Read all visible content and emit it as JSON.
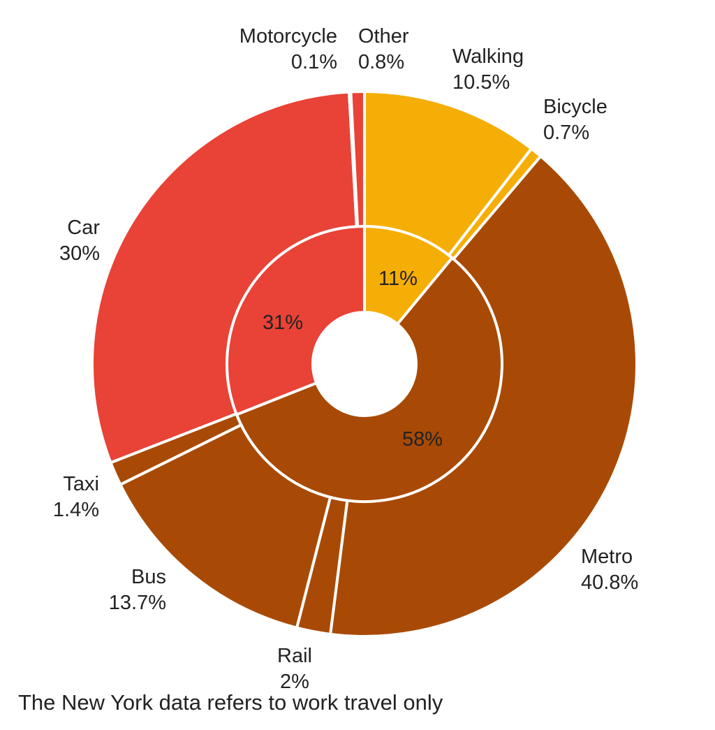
{
  "chart_data": {
    "type": "pie",
    "subtype": "nested-donut",
    "colors": {
      "walking_bicycle": "#f5ae05",
      "public_transport": "#a84a05",
      "car": "#e94236",
      "motorcycle": "#1c6e8c",
      "other": "#e94236",
      "separator": "#ffffff"
    },
    "outer": [
      {
        "label": "Walking",
        "value_label": "10.5%",
        "value": 10.5,
        "color": "#f5ae05"
      },
      {
        "label": "Bicycle",
        "value_label": "0.7%",
        "value": 0.7,
        "color": "#f5ae05"
      },
      {
        "label": "Metro",
        "value_label": "40.8%",
        "value": 40.8,
        "color": "#a84a05"
      },
      {
        "label": "Rail",
        "value_label": "2%",
        "value": 2.0,
        "color": "#a84a05"
      },
      {
        "label": "Bus",
        "value_label": "13.7%",
        "value": 13.7,
        "color": "#a84a05"
      },
      {
        "label": "Taxi",
        "value_label": "1.4%",
        "value": 1.4,
        "color": "#a84a05"
      },
      {
        "label": "Car",
        "value_label": "30%",
        "value": 30.0,
        "color": "#e94236"
      },
      {
        "label": "Motorcycle",
        "value_label": "0.1%",
        "value": 0.1,
        "color": "#1c6e8c"
      },
      {
        "label": "Other",
        "value_label": "0.8%",
        "value": 0.8,
        "color": "#e94236"
      }
    ],
    "inner": [
      {
        "value_label": "11%",
        "value": 11,
        "color": "#f5ae05"
      },
      {
        "value_label": "58%",
        "value": 58,
        "color": "#a84a05"
      },
      {
        "value_label": "31%",
        "value": 31,
        "color": "#e94236"
      }
    ],
    "footnote": "The New York data refers to work travel only"
  }
}
